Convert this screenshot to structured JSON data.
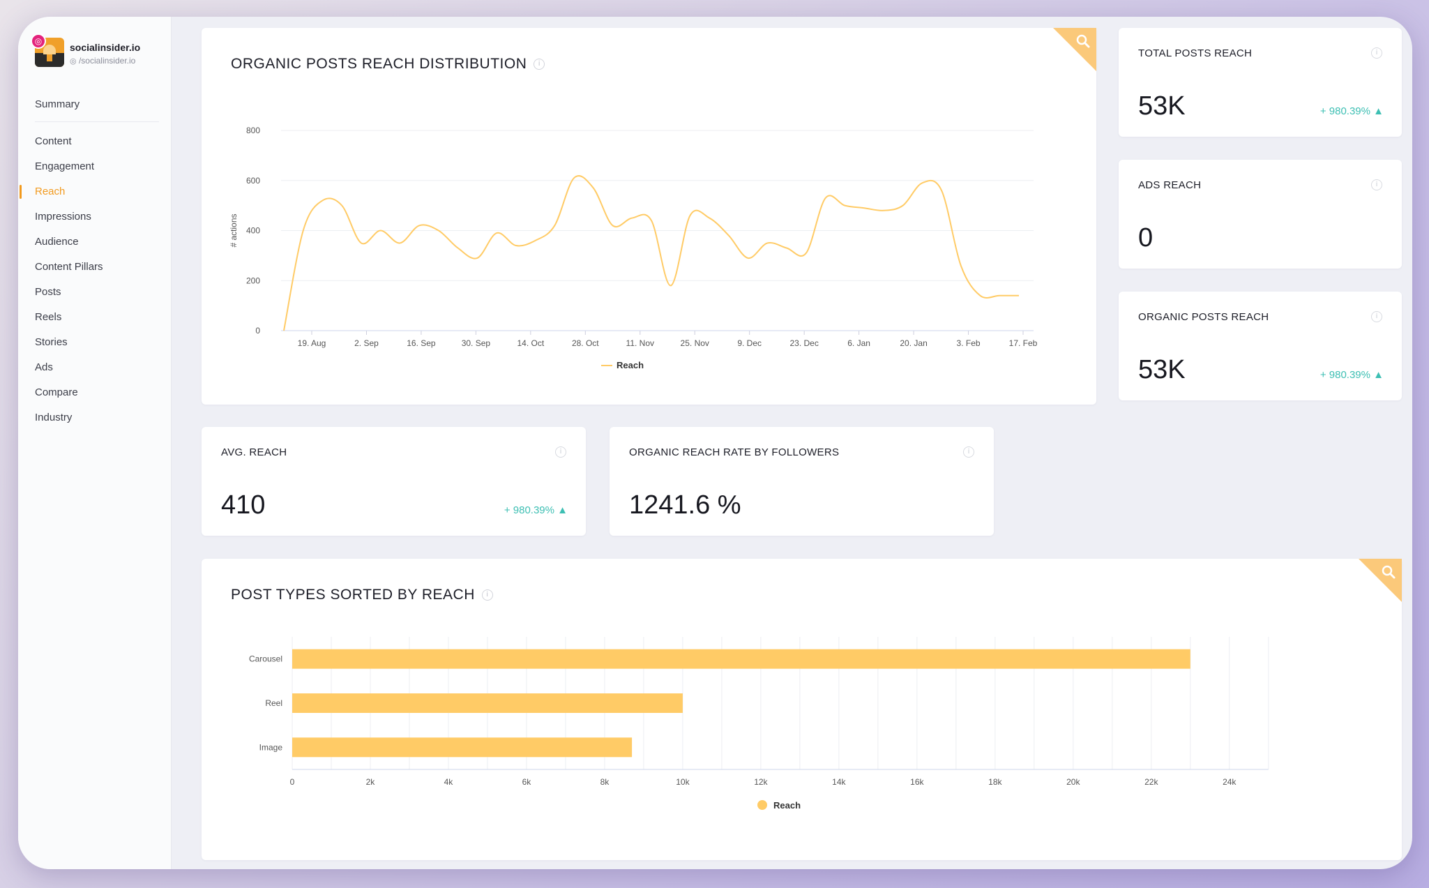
{
  "brand": {
    "name": "socialinsider.io",
    "handle": "/socialinsider.io"
  },
  "sidebar": {
    "summary": "Summary",
    "items": [
      {
        "label": "Content",
        "active": false
      },
      {
        "label": "Engagement",
        "active": false
      },
      {
        "label": "Reach",
        "active": true
      },
      {
        "label": "Impressions",
        "active": false
      },
      {
        "label": "Audience",
        "active": false
      },
      {
        "label": "Content Pillars",
        "active": false
      },
      {
        "label": "Posts",
        "active": false
      },
      {
        "label": "Reels",
        "active": false
      },
      {
        "label": "Stories",
        "active": false
      },
      {
        "label": "Ads",
        "active": false
      },
      {
        "label": "Compare",
        "active": false
      },
      {
        "label": "Industry",
        "active": false
      }
    ]
  },
  "colors": {
    "accent": "#f29a1e",
    "chart": "#ffcb66",
    "positive": "#3dbfb3"
  },
  "distribution_card": {
    "title": "ORGANIC POSTS REACH DISTRIBUTION"
  },
  "stats": {
    "total_posts_reach": {
      "title": "TOTAL POSTS REACH",
      "value": "53K",
      "delta": "+ 980.39% ▲"
    },
    "ads_reach": {
      "title": "ADS REACH",
      "value": "0"
    },
    "organic_posts_reach": {
      "title": "ORGANIC POSTS REACH",
      "value": "53K",
      "delta": "+ 980.39% ▲"
    },
    "avg_reach": {
      "title": "AVG. REACH",
      "value": "410",
      "delta": "+ 980.39% ▲"
    },
    "reach_rate": {
      "title": "ORGANIC REACH RATE BY FOLLOWERS",
      "value": "1241.6 %"
    }
  },
  "post_types_card": {
    "title": "POST TYPES SORTED BY REACH"
  },
  "chart_data": [
    {
      "type": "line",
      "ylabel": "# actions",
      "ylim": [
        0,
        800
      ],
      "yticks": [
        "0",
        "200",
        "400",
        "600",
        "800"
      ],
      "xticks": [
        "19. Aug",
        "2. Sep",
        "16. Sep",
        "30. Sep",
        "14. Oct",
        "28. Oct",
        "11. Nov",
        "25. Nov",
        "9. Dec",
        "23. Dec",
        "6. Jan",
        "20. Jan",
        "3. Feb",
        "17. Feb"
      ],
      "grid": true,
      "legend_position": "bottom",
      "series": [
        {
          "name": "Reach",
          "x": [
            0,
            1,
            2,
            3,
            4,
            5,
            6,
            7,
            8,
            9,
            10,
            11,
            12,
            13,
            14,
            15,
            16,
            17,
            18,
            19,
            20,
            21,
            22,
            23,
            24,
            25,
            26,
            27,
            28,
            29,
            30,
            31,
            32,
            33,
            34,
            35,
            36,
            37,
            38
          ],
          "values": [
            0,
            400,
            520,
            500,
            350,
            400,
            350,
            420,
            400,
            330,
            290,
            390,
            340,
            360,
            420,
            610,
            570,
            420,
            450,
            440,
            180,
            460,
            450,
            380,
            290,
            350,
            330,
            310,
            530,
            500,
            490,
            480,
            500,
            590,
            560,
            260,
            140,
            140,
            140
          ]
        }
      ]
    },
    {
      "type": "bar",
      "orientation": "horizontal",
      "categories": [
        "Carousel",
        "Reel",
        "Image"
      ],
      "series": [
        {
          "name": "Reach",
          "values": [
            23000,
            10000,
            8700
          ]
        }
      ],
      "xlim": [
        0,
        25000
      ],
      "xticks": [
        "0",
        "2k",
        "4k",
        "6k",
        "8k",
        "10k",
        "12k",
        "14k",
        "16k",
        "18k",
        "20k",
        "22k",
        "24k"
      ],
      "grid": true,
      "legend_position": "bottom"
    }
  ]
}
